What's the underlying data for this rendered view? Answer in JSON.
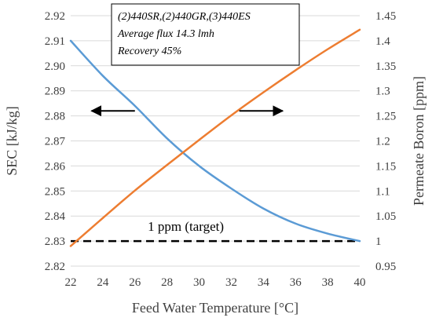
{
  "chart_data": {
    "type": "line",
    "xlabel": "Feed Water Temperature [°C]",
    "ylabel_left": "SEC [kJ/kg]",
    "ylabel_right": "Permeate Boron [ppm]",
    "x_ticks": [
      22,
      24,
      26,
      28,
      30,
      32,
      34,
      36,
      38,
      40
    ],
    "xlim": [
      22,
      40
    ],
    "ylim_left": [
      2.82,
      2.92
    ],
    "ylim_right": [
      0.95,
      1.45
    ],
    "y_left_ticks": [
      "2.82",
      "2.83",
      "2.84",
      "2.85",
      "2.86",
      "2.87",
      "2.88",
      "2.89",
      "2.90",
      "2.91",
      "2.92"
    ],
    "y_right_ticks": [
      "0.95",
      "1",
      "1.05",
      "1.1",
      "1.15",
      "1.2",
      "1.25",
      "1.3",
      "1.35",
      "1.4",
      "1.45"
    ],
    "grid": "horizontal",
    "series": [
      {
        "axis": "left",
        "color": "#5b9bd5",
        "x": [
          22,
          24,
          26,
          28,
          30,
          32,
          34,
          36,
          38,
          40
        ],
        "y": [
          2.91,
          2.896,
          2.884,
          2.871,
          2.86,
          2.851,
          2.843,
          2.837,
          2.833,
          2.83
        ]
      },
      {
        "axis": "right",
        "color": "#ed7d31",
        "x": [
          22,
          24,
          26,
          28,
          30,
          32,
          34,
          36,
          38,
          40
        ],
        "y": [
          0.99,
          1.046,
          1.101,
          1.152,
          1.202,
          1.251,
          1.297,
          1.341,
          1.383,
          1.422
        ]
      }
    ],
    "reference_line": {
      "axis": "right",
      "value": 1.0,
      "label": "1 ppm (target)",
      "style": "dashed",
      "color": "#000000"
    },
    "annotations": [
      "(2)440SR,(2)440GR,(3)440ES",
      "Average flux 14.3 lmh",
      "Recovery 45%"
    ],
    "arrows": [
      {
        "direction": "left",
        "x_from": 26.0,
        "x_to": 23.3,
        "y_left": 2.882
      },
      {
        "direction": "right",
        "x_from": 32.5,
        "x_to": 35.2,
        "y_left": 2.882
      }
    ]
  }
}
